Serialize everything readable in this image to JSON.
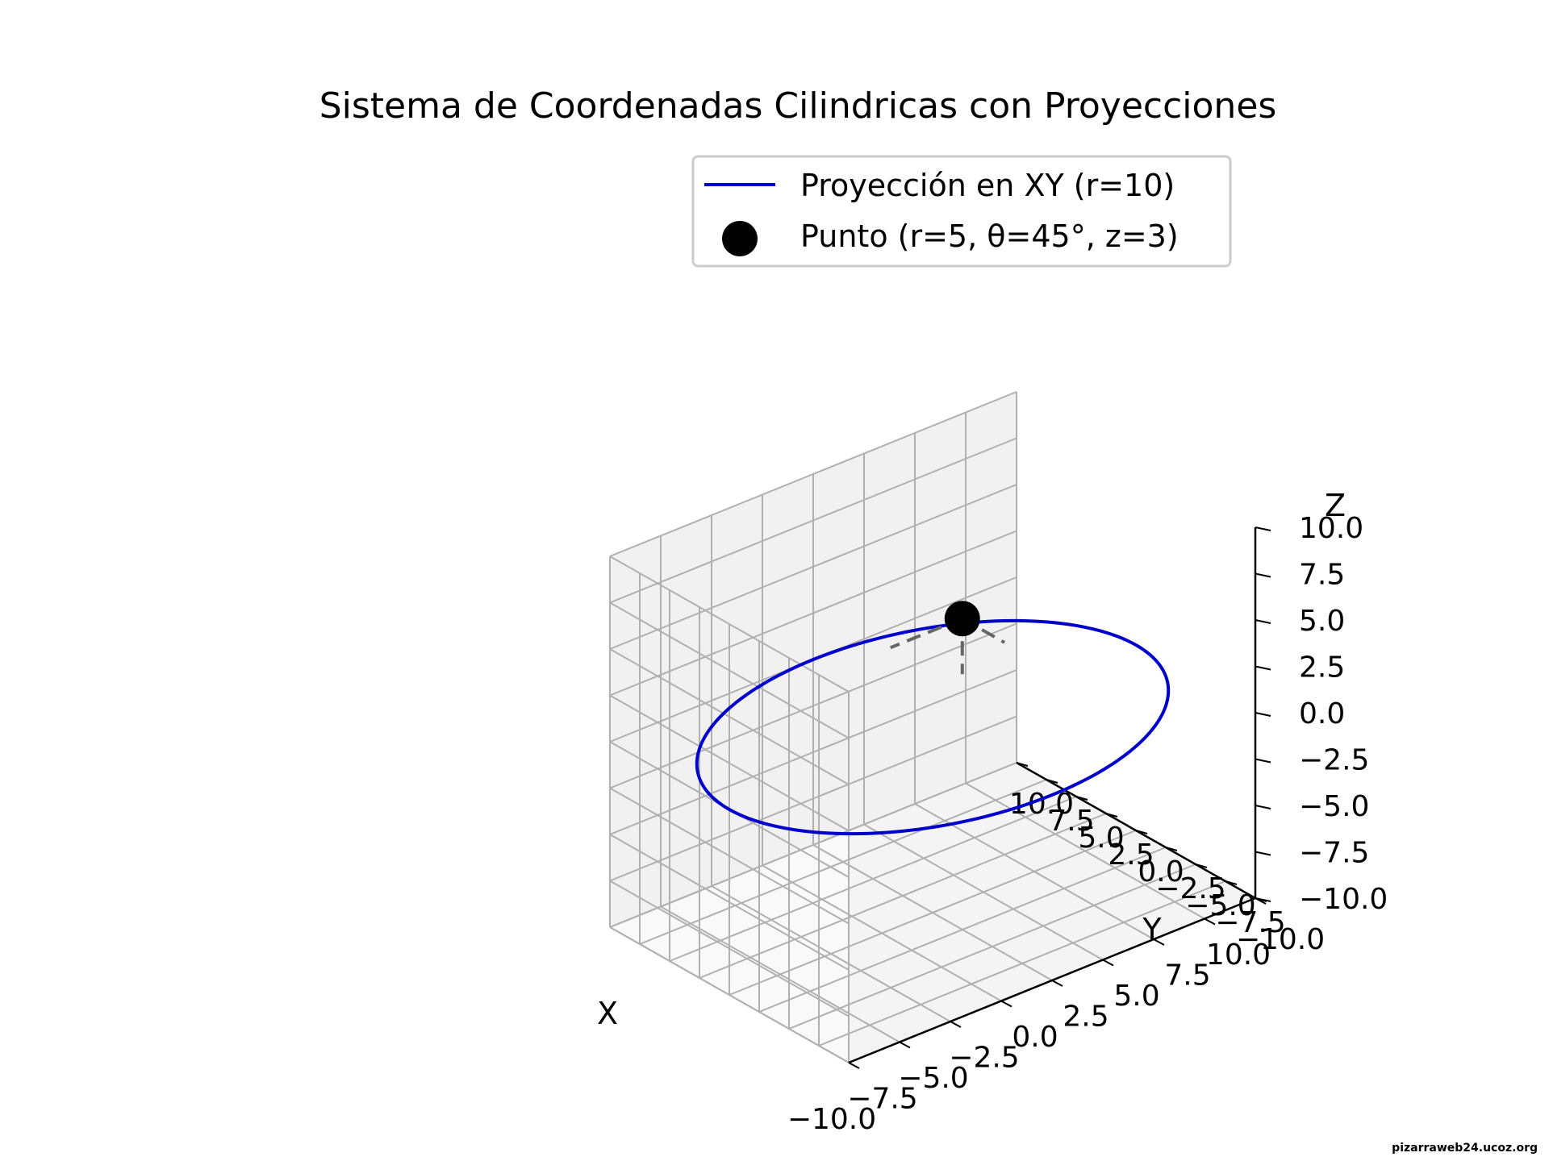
{
  "chart_data": {
    "type": "line",
    "projection": "3d",
    "title": "Sistema de Coordenadas Cilindricas con Proyecciones",
    "xlabel": "X",
    "ylabel": "Y",
    "zlabel": "Z",
    "xlim": [
      -10,
      10
    ],
    "ylim": [
      -10,
      10
    ],
    "zlim": [
      -10,
      10
    ],
    "ticks": [
      "−10.0",
      "−7.5",
      "−5.0",
      "−2.5",
      "0.0",
      "2.5",
      "5.0",
      "7.5",
      "10.0"
    ],
    "grid": true,
    "legend_position": "top-right",
    "series": [
      {
        "name": "Proyección en XY (r=10)",
        "kind": "circle",
        "r": 10,
        "z": 0,
        "color": "#0000cc"
      },
      {
        "name": "Punto (r=5, θ=45°, z=3)",
        "kind": "point",
        "r": 5,
        "theta_deg": 45,
        "z": 3,
        "color": "#000000"
      }
    ],
    "projection_lines": {
      "style": "dashed",
      "color": "#666666"
    }
  },
  "watermark": "pizarraweb24.ucoz.org"
}
